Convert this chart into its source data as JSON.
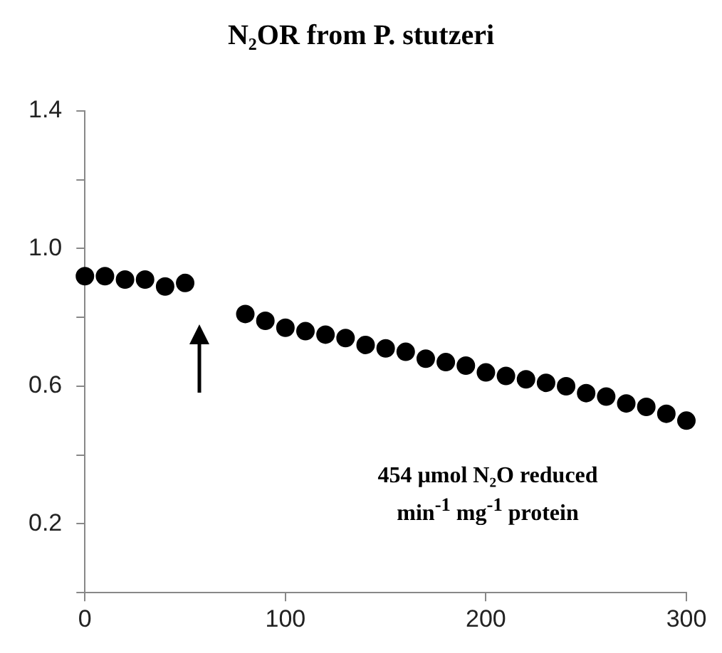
{
  "chart_data": {
    "type": "scatter",
    "title": "N₂OR from P. stutzeri",
    "annotations": [
      "454 µmol N₂O reduced min$^{-1}$ mg$^{-1}$ protein"
    ],
    "x": [
      0,
      10,
      20,
      30,
      40,
      50,
      80,
      90,
      100,
      110,
      120,
      130,
      140,
      150,
      160,
      170,
      180,
      190,
      200,
      210,
      220,
      230,
      240,
      250,
      260,
      270,
      280,
      290,
      300
    ],
    "series": [
      {
        "color": "#000000",
        "values": [
          0.92,
          0.92,
          0.91,
          0.91,
          0.89,
          0.9,
          0.81,
          0.79,
          0.77,
          0.76,
          0.75,
          0.74,
          0.72,
          0.71,
          0.7,
          0.68,
          0.67,
          0.66,
          0.64,
          0.63,
          0.62,
          0.61,
          0.6,
          0.58,
          0.57,
          0.55,
          0.54,
          0.52,
          0.5
        ]
      }
    ],
    "xlim": [
      0,
      300
    ],
    "xticks": [
      0,
      100,
      200,
      300
    ],
    "ylim": [
      0,
      1.4
    ],
    "yticks": [
      {
        "value": 0,
        "label": null
      },
      0.2,
      {
        "value": 0.4,
        "label": null
      },
      0.6,
      {
        "value": 0.8,
        "label": null
      },
      {
        "value": 1.0,
        "label": "1.0"
      },
      {
        "value": 1.2,
        "label": null
      },
      1.4
    ],
    "grid": false,
    "legend": false,
    "marker": "circle"
  }
}
